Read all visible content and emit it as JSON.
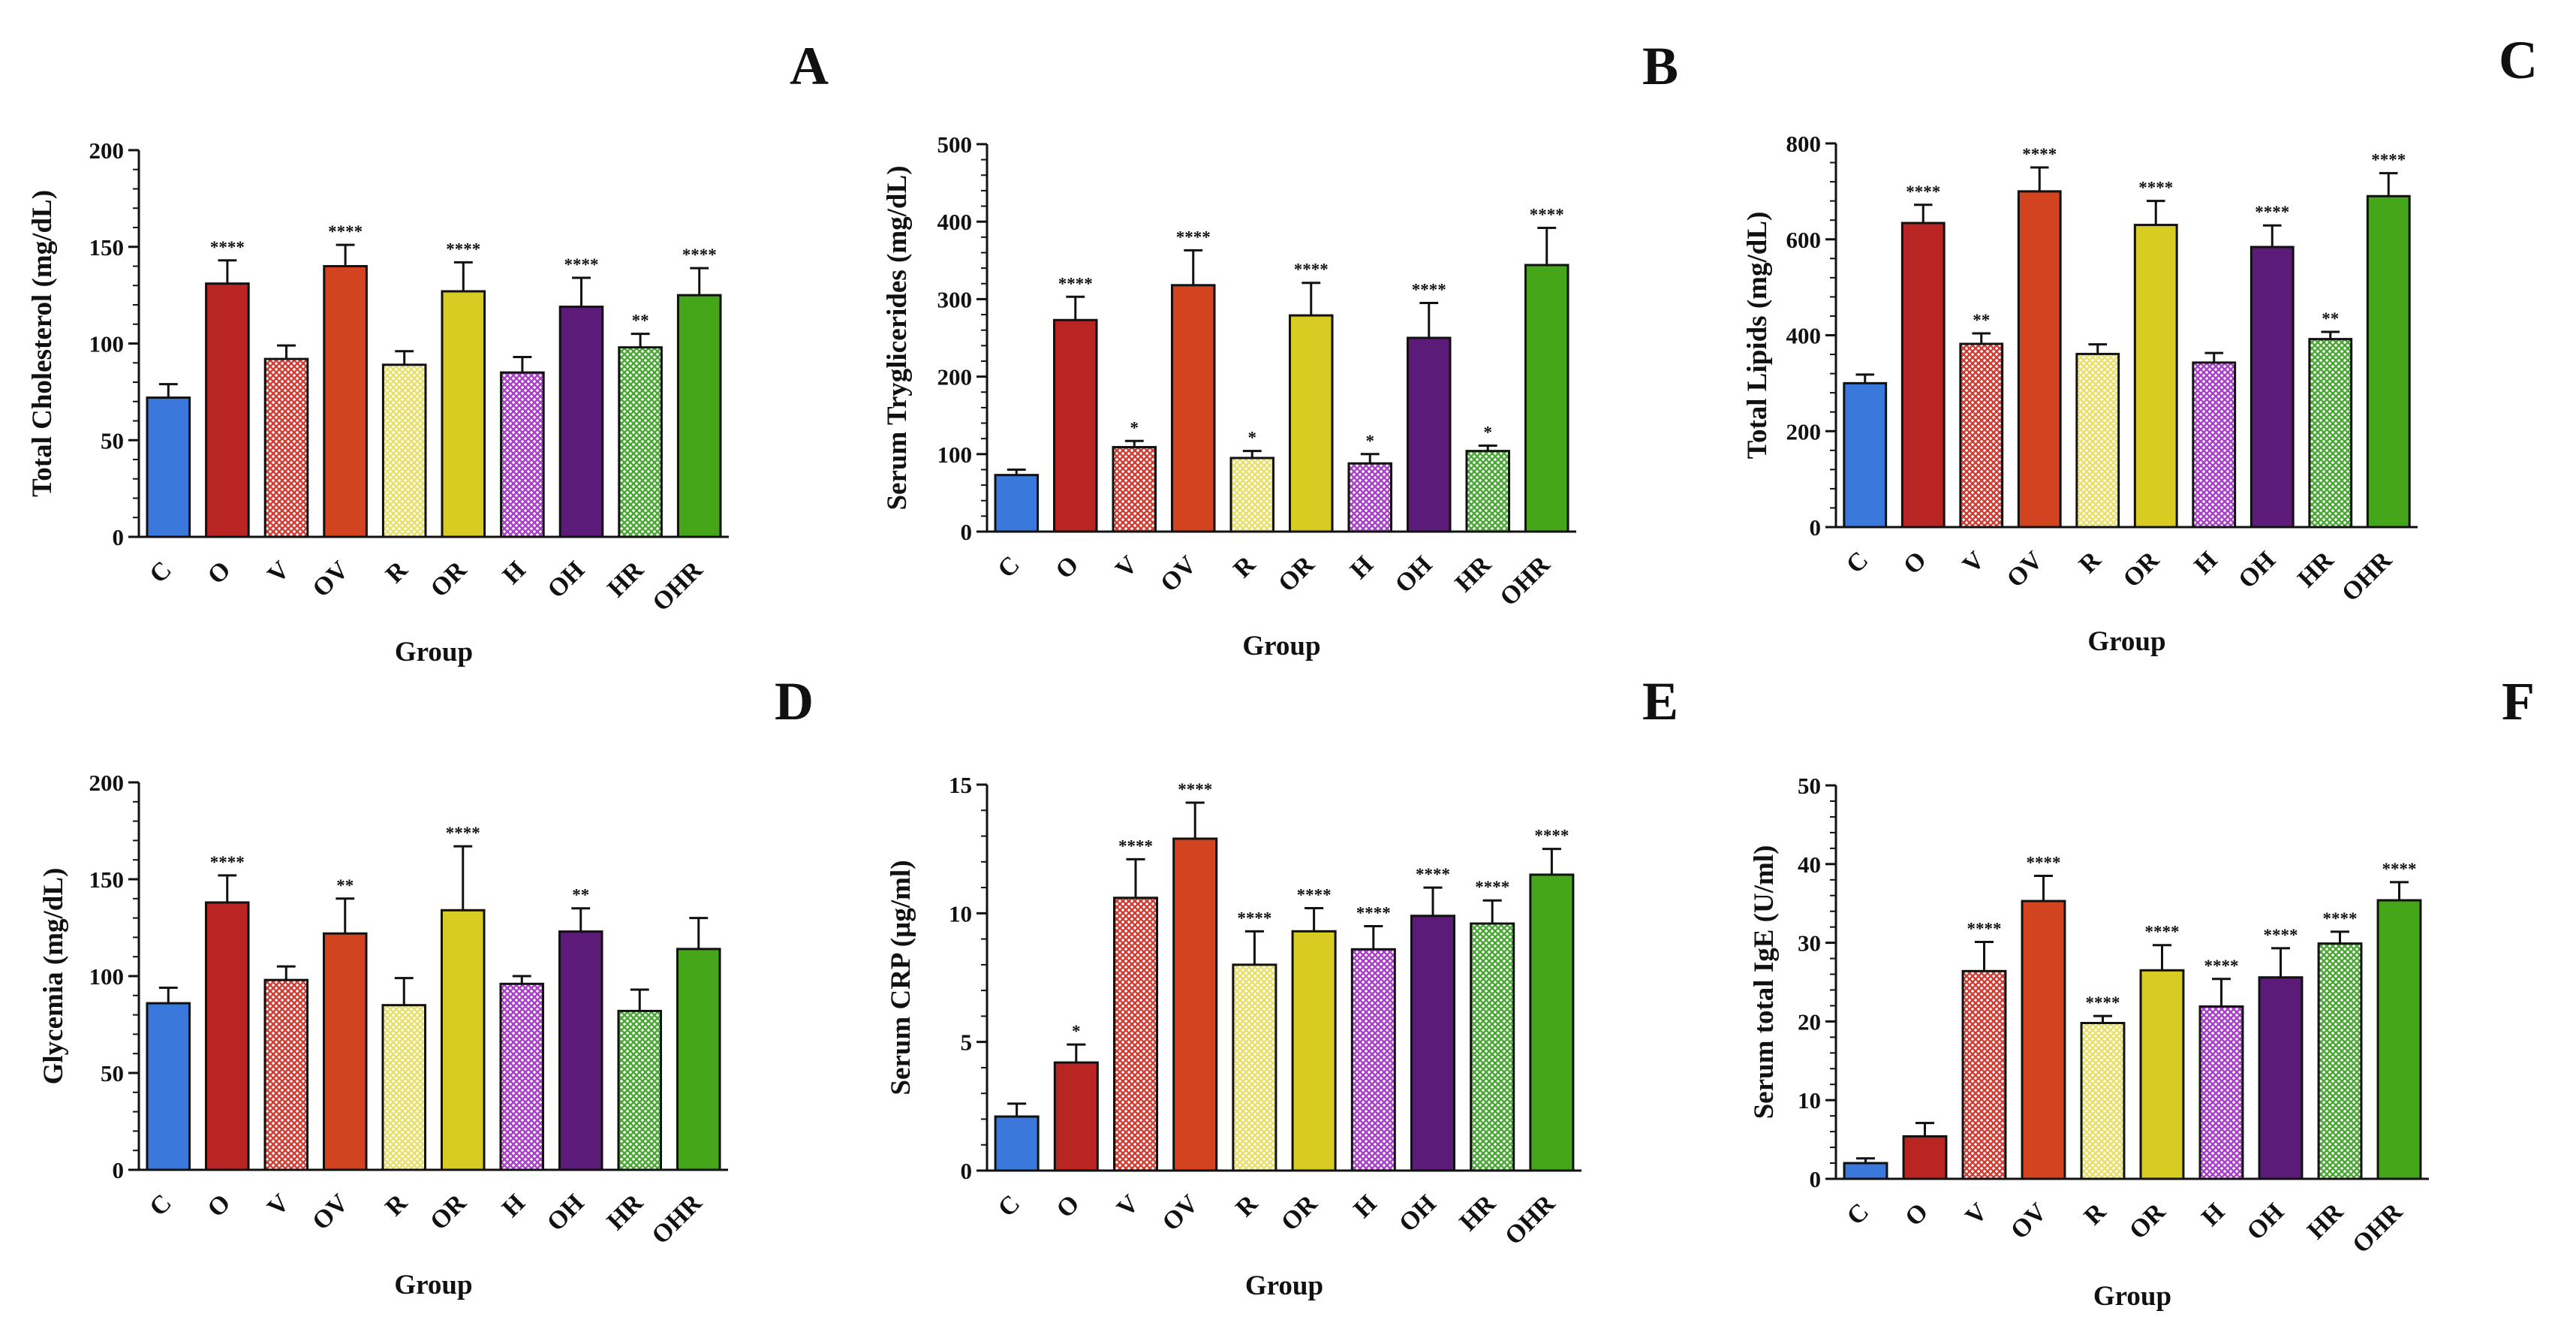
{
  "figure": {
    "groups": [
      "C",
      "O",
      "V",
      "OV",
      "R",
      "OR",
      "H",
      "OH",
      "HR",
      "OHR"
    ],
    "colors": {
      "C": {
        "fill": "#3a78dc",
        "pattern": "none"
      },
      "O": {
        "fill": "#b92522",
        "pattern": "none"
      },
      "V": {
        "fill": "#d03c32",
        "pattern": "check"
      },
      "OV": {
        "fill": "#d24420",
        "pattern": "none"
      },
      "R": {
        "fill": "#e7e06a",
        "pattern": "check"
      },
      "OR": {
        "fill": "#d8cc22",
        "pattern": "none"
      },
      "H": {
        "fill": "#a83ec8",
        "pattern": "check"
      },
      "OH": {
        "fill": "#5c1b78",
        "pattern": "none"
      },
      "HR": {
        "fill": "#4aa634",
        "pattern": "check"
      },
      "OHR": {
        "fill": "#46a61a",
        "pattern": "none"
      }
    }
  },
  "chart_data": [
    {
      "panel": "A",
      "type": "bar",
      "title": "",
      "xlabel": "Group",
      "ylabel": "Total Cholesterol (mg/dL)",
      "ylim": [
        0,
        200
      ],
      "yticks": [
        0,
        50,
        100,
        150,
        200
      ],
      "categories": [
        "C",
        "O",
        "V",
        "OV",
        "R",
        "OR",
        "H",
        "OH",
        "HR",
        "OHR"
      ],
      "values": [
        72,
        131,
        92,
        140,
        89,
        127,
        85,
        119,
        98,
        125
      ],
      "errors": [
        7,
        12,
        7,
        11,
        7,
        15,
        8,
        15,
        7,
        14
      ],
      "significance": [
        "",
        "****",
        "",
        "****",
        "",
        "****",
        "",
        "****",
        "**",
        "****"
      ]
    },
    {
      "panel": "B",
      "type": "bar",
      "title": "",
      "xlabel": "Group",
      "ylabel": "Serum Tryglicerides (mg/dL)",
      "ylim": [
        0,
        500
      ],
      "yticks": [
        0,
        100,
        200,
        300,
        400,
        500
      ],
      "categories": [
        "C",
        "O",
        "V",
        "OV",
        "R",
        "OR",
        "H",
        "OH",
        "HR",
        "OHR"
      ],
      "values": [
        73,
        273,
        109,
        318,
        95,
        279,
        88,
        250,
        104,
        344
      ],
      "errors": [
        7,
        30,
        8,
        45,
        9,
        42,
        12,
        45,
        7,
        48
      ],
      "significance": [
        "",
        "****",
        "*",
        "****",
        "*",
        "****",
        "*",
        "****",
        "*",
        "****"
      ]
    },
    {
      "panel": "C",
      "type": "bar",
      "title": "",
      "xlabel": "Group",
      "ylabel": "Total Lipids (mg/dL)",
      "ylim": [
        0,
        800
      ],
      "yticks": [
        0,
        200,
        400,
        600,
        800
      ],
      "categories": [
        "C",
        "O",
        "V",
        "OV",
        "R",
        "OR",
        "H",
        "OH",
        "HR",
        "OHR"
      ],
      "values": [
        300,
        634,
        382,
        700,
        361,
        630,
        343,
        584,
        392,
        690
      ],
      "errors": [
        18,
        38,
        22,
        50,
        20,
        50,
        20,
        45,
        15,
        48
      ],
      "significance": [
        "",
        "****",
        "**",
        "****",
        "",
        "****",
        "",
        "****",
        "**",
        "****"
      ]
    },
    {
      "panel": "D",
      "type": "bar",
      "title": "",
      "xlabel": "Group",
      "ylabel": "Glycemia (mg/dL)",
      "ylim": [
        0,
        200
      ],
      "yticks": [
        0,
        50,
        100,
        150,
        200
      ],
      "categories": [
        "C",
        "O",
        "V",
        "OV",
        "R",
        "OR",
        "H",
        "OH",
        "HR",
        "OHR"
      ],
      "values": [
        86,
        138,
        98,
        122,
        85,
        134,
        96,
        123,
        82,
        114
      ],
      "errors": [
        8,
        14,
        7,
        18,
        14,
        33,
        4,
        12,
        11,
        16
      ],
      "significance": [
        "",
        "****",
        "",
        "**",
        "",
        "****",
        "",
        "**",
        "",
        ""
      ]
    },
    {
      "panel": "E",
      "type": "bar",
      "title": "",
      "xlabel": "Group",
      "ylabel": "Serum CRP (µg/ml)",
      "ylim": [
        0,
        15
      ],
      "yticks": [
        0,
        5,
        10,
        15
      ],
      "categories": [
        "C",
        "O",
        "V",
        "OV",
        "R",
        "OR",
        "H",
        "OH",
        "HR",
        "OHR"
      ],
      "values": [
        2.1,
        4.2,
        10.6,
        12.9,
        8.0,
        9.3,
        8.6,
        9.9,
        9.6,
        11.5
      ],
      "errors": [
        0.5,
        0.7,
        1.5,
        1.4,
        1.3,
        0.9,
        0.9,
        1.1,
        0.9,
        1.0
      ],
      "significance": [
        "",
        "*",
        "****",
        "****",
        "****",
        "****",
        "****",
        "****",
        "****",
        "****"
      ]
    },
    {
      "panel": "F",
      "type": "bar",
      "title": "",
      "xlabel": "Group",
      "ylabel": "Serum total IgE (U/ml)",
      "ylim": [
        0,
        50
      ],
      "yticks": [
        0,
        10,
        20,
        30,
        40,
        50
      ],
      "categories": [
        "C",
        "O",
        "V",
        "OV",
        "R",
        "OR",
        "H",
        "OH",
        "HR",
        "OHR"
      ],
      "values": [
        2.0,
        5.4,
        26.4,
        35.3,
        19.8,
        26.5,
        21.9,
        25.6,
        29.9,
        35.4
      ],
      "errors": [
        0.6,
        1.7,
        3.7,
        3.2,
        0.9,
        3.2,
        3.5,
        3.7,
        1.5,
        2.3
      ],
      "significance": [
        "",
        "",
        "****",
        "****",
        "****",
        "****",
        "****",
        "****",
        "****",
        "****"
      ]
    }
  ]
}
